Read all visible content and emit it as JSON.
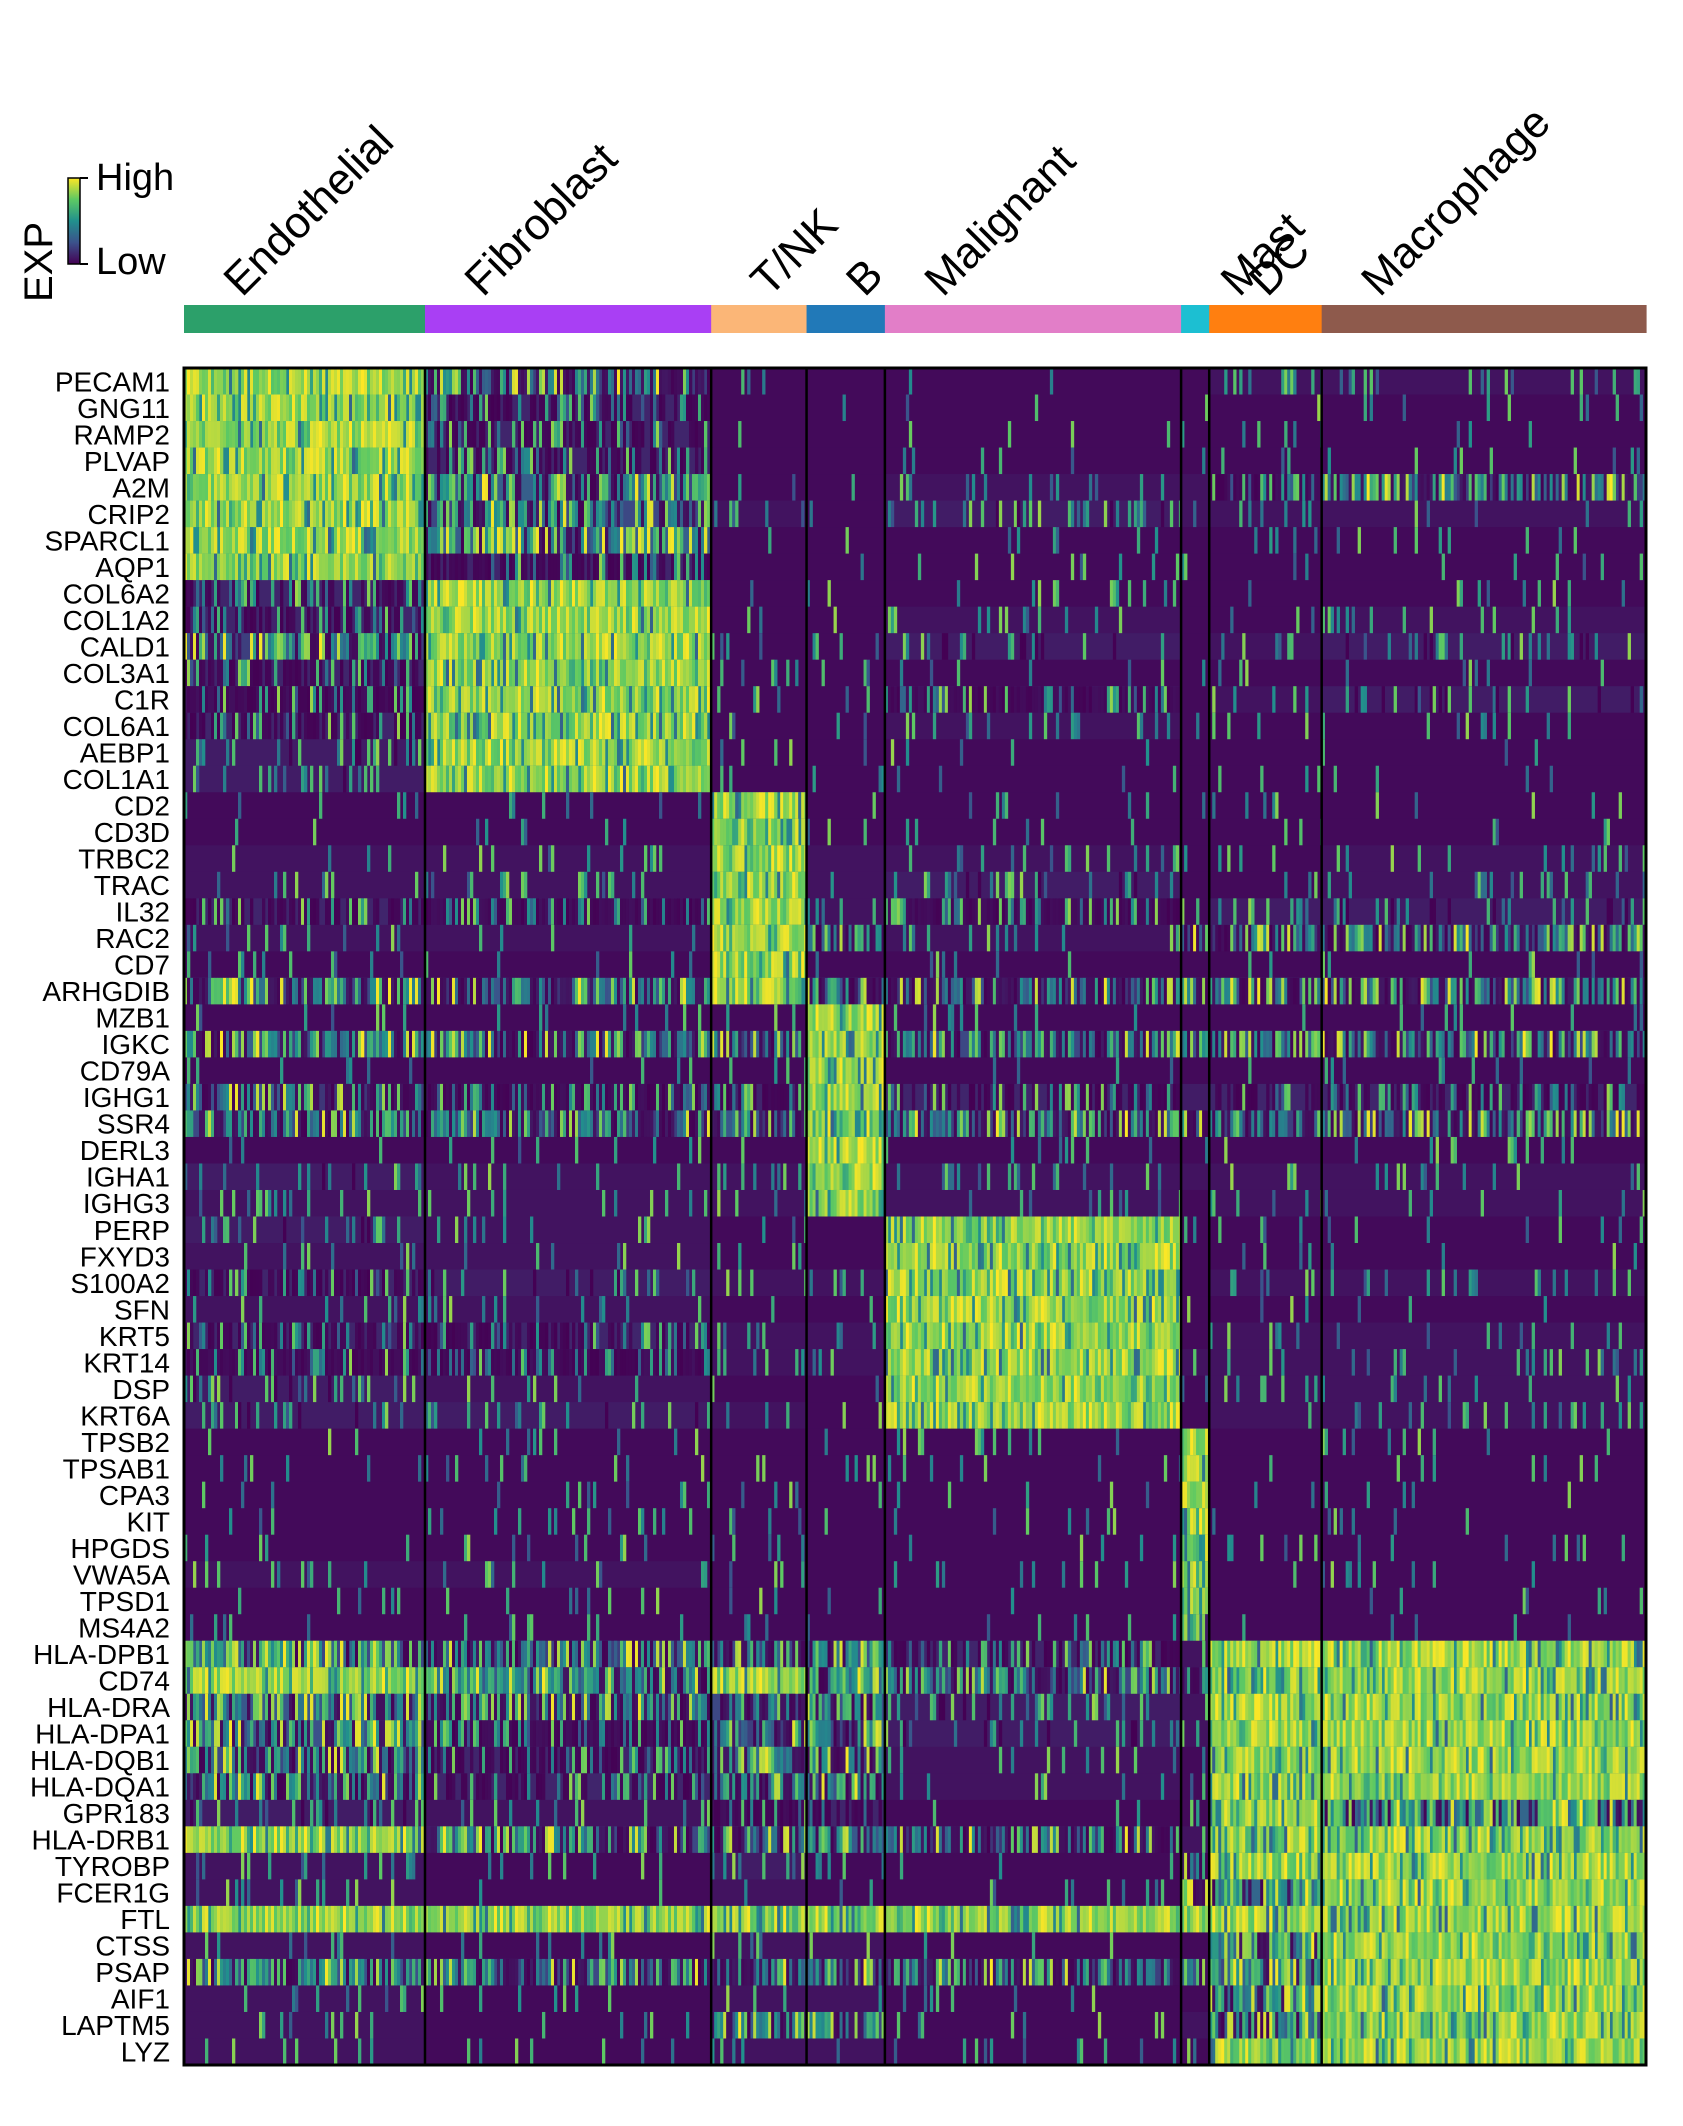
{
  "chart_data": {
    "type": "heatmap",
    "legend": {
      "title": "EXP",
      "high_label": "High",
      "low_label": "Low",
      "colormap": "viridis",
      "colors": [
        "#440154",
        "#3b528b",
        "#21908d",
        "#5dc963",
        "#fde725"
      ]
    },
    "clusters": [
      {
        "name": "Endothelial",
        "color": "#2ca06a",
        "cells": 240
      },
      {
        "name": "Fibroblast",
        "color": "#a93ff4",
        "cells": 285
      },
      {
        "name": "T/NK",
        "color": "#fbb677",
        "cells": 95
      },
      {
        "name": "B",
        "color": "#2179b8",
        "cells": 78
      },
      {
        "name": "Malignant",
        "color": "#e27ec8",
        "cells": 295
      },
      {
        "name": "Mast",
        "color": "#1cbfd2",
        "cells": 28
      },
      {
        "name": "DC",
        "color": "#ff7f10",
        "cells": 112
      },
      {
        "name": "Macrophage",
        "color": "#8e5a4c",
        "cells": 323
      }
    ],
    "genes": [
      {
        "name": "PECAM1",
        "marker_of": "Endothelial"
      },
      {
        "name": "GNG11",
        "marker_of": "Endothelial"
      },
      {
        "name": "RAMP2",
        "marker_of": "Endothelial"
      },
      {
        "name": "PLVAP",
        "marker_of": "Endothelial"
      },
      {
        "name": "A2M",
        "marker_of": "Endothelial"
      },
      {
        "name": "CRIP2",
        "marker_of": "Endothelial"
      },
      {
        "name": "SPARCL1",
        "marker_of": "Endothelial"
      },
      {
        "name": "AQP1",
        "marker_of": "Endothelial"
      },
      {
        "name": "COL6A2",
        "marker_of": "Fibroblast"
      },
      {
        "name": "COL1A2",
        "marker_of": "Fibroblast"
      },
      {
        "name": "CALD1",
        "marker_of": "Fibroblast"
      },
      {
        "name": "COL3A1",
        "marker_of": "Fibroblast"
      },
      {
        "name": "C1R",
        "marker_of": "Fibroblast"
      },
      {
        "name": "COL6A1",
        "marker_of": "Fibroblast"
      },
      {
        "name": "AEBP1",
        "marker_of": "Fibroblast"
      },
      {
        "name": "COL1A1",
        "marker_of": "Fibroblast"
      },
      {
        "name": "CD2",
        "marker_of": "T/NK"
      },
      {
        "name": "CD3D",
        "marker_of": "T/NK"
      },
      {
        "name": "TRBC2",
        "marker_of": "T/NK"
      },
      {
        "name": "TRAC",
        "marker_of": "T/NK"
      },
      {
        "name": "IL32",
        "marker_of": "T/NK"
      },
      {
        "name": "RAC2",
        "marker_of": "T/NK"
      },
      {
        "name": "CD7",
        "marker_of": "T/NK"
      },
      {
        "name": "ARHGDIB",
        "marker_of": "T/NK"
      },
      {
        "name": "MZB1",
        "marker_of": "B"
      },
      {
        "name": "IGKC",
        "marker_of": "B"
      },
      {
        "name": "CD79A",
        "marker_of": "B"
      },
      {
        "name": "IGHG1",
        "marker_of": "B"
      },
      {
        "name": "SSR4",
        "marker_of": "B"
      },
      {
        "name": "DERL3",
        "marker_of": "B"
      },
      {
        "name": "IGHA1",
        "marker_of": "B"
      },
      {
        "name": "IGHG3",
        "marker_of": "B"
      },
      {
        "name": "PERP",
        "marker_of": "Malignant"
      },
      {
        "name": "FXYD3",
        "marker_of": "Malignant"
      },
      {
        "name": "S100A2",
        "marker_of": "Malignant"
      },
      {
        "name": "SFN",
        "marker_of": "Malignant"
      },
      {
        "name": "KRT5",
        "marker_of": "Malignant"
      },
      {
        "name": "KRT14",
        "marker_of": "Malignant"
      },
      {
        "name": "DSP",
        "marker_of": "Malignant"
      },
      {
        "name": "KRT6A",
        "marker_of": "Malignant"
      },
      {
        "name": "TPSB2",
        "marker_of": "Mast"
      },
      {
        "name": "TPSAB1",
        "marker_of": "Mast"
      },
      {
        "name": "CPA3",
        "marker_of": "Mast"
      },
      {
        "name": "KIT",
        "marker_of": "Mast"
      },
      {
        "name": "HPGDS",
        "marker_of": "Mast"
      },
      {
        "name": "VWA5A",
        "marker_of": "Mast"
      },
      {
        "name": "TPSD1",
        "marker_of": "Mast"
      },
      {
        "name": "MS4A2",
        "marker_of": "Mast"
      },
      {
        "name": "HLA-DPB1",
        "marker_of": "DC"
      },
      {
        "name": "CD74",
        "marker_of": "DC"
      },
      {
        "name": "HLA-DRA",
        "marker_of": "DC"
      },
      {
        "name": "HLA-DPA1",
        "marker_of": "DC"
      },
      {
        "name": "HLA-DQB1",
        "marker_of": "DC"
      },
      {
        "name": "HLA-DQA1",
        "marker_of": "DC"
      },
      {
        "name": "GPR183",
        "marker_of": "DC"
      },
      {
        "name": "HLA-DRB1",
        "marker_of": "DC"
      },
      {
        "name": "TYROBP",
        "marker_of": "Macrophage"
      },
      {
        "name": "FCER1G",
        "marker_of": "Macrophage"
      },
      {
        "name": "FTL",
        "marker_of": "Macrophage"
      },
      {
        "name": "CTSS",
        "marker_of": "Macrophage"
      },
      {
        "name": "PSAP",
        "marker_of": "Macrophage"
      },
      {
        "name": "AIF1",
        "marker_of": "Macrophage"
      },
      {
        "name": "LAPTM5",
        "marker_of": "Macrophage"
      },
      {
        "name": "LYZ",
        "marker_of": "Macrophage"
      }
    ],
    "expression_profile_scale": "0 = Low, 1 = High",
    "mean_expression": {
      "columns": [
        "Endothelial",
        "Fibroblast",
        "T/NK",
        "B",
        "Malignant",
        "Mast",
        "DC",
        "Macrophage"
      ],
      "rows": {
        "PECAM1": [
          0.85,
          0.35,
          0.05,
          0.05,
          0.05,
          0.05,
          0.1,
          0.1
        ],
        "GNG11": [
          0.85,
          0.2,
          0.05,
          0.05,
          0.05,
          0.05,
          0.05,
          0.05
        ],
        "RAMP2": [
          0.85,
          0.2,
          0.05,
          0.05,
          0.05,
          0.05,
          0.05,
          0.05
        ],
        "PLVAP": [
          0.85,
          0.2,
          0.05,
          0.05,
          0.05,
          0.05,
          0.05,
          0.05
        ],
        "A2M": [
          0.9,
          0.55,
          0.05,
          0.05,
          0.1,
          0.1,
          0.25,
          0.35
        ],
        "CRIP2": [
          0.85,
          0.4,
          0.1,
          0.05,
          0.15,
          0.1,
          0.1,
          0.1
        ],
        "SPARCL1": [
          0.9,
          0.55,
          0.05,
          0.05,
          0.05,
          0.05,
          0.05,
          0.05
        ],
        "AQP1": [
          0.85,
          0.2,
          0.05,
          0.05,
          0.05,
          0.05,
          0.05,
          0.05
        ],
        "COL6A2": [
          0.2,
          0.9,
          0.05,
          0.05,
          0.05,
          0.05,
          0.05,
          0.05
        ],
        "COL1A2": [
          0.2,
          0.9,
          0.05,
          0.05,
          0.1,
          0.05,
          0.05,
          0.1
        ],
        "CALD1": [
          0.35,
          0.9,
          0.05,
          0.05,
          0.15,
          0.05,
          0.1,
          0.15
        ],
        "COL3A1": [
          0.2,
          0.9,
          0.05,
          0.05,
          0.05,
          0.05,
          0.05,
          0.05
        ],
        "C1R": [
          0.25,
          0.85,
          0.05,
          0.05,
          0.25,
          0.05,
          0.1,
          0.15
        ],
        "COL6A1": [
          0.2,
          0.85,
          0.05,
          0.05,
          0.1,
          0.05,
          0.05,
          0.05
        ],
        "AEBP1": [
          0.15,
          0.85,
          0.05,
          0.05,
          0.05,
          0.05,
          0.05,
          0.05
        ],
        "COL1A1": [
          0.15,
          0.9,
          0.05,
          0.05,
          0.05,
          0.05,
          0.05,
          0.05
        ],
        "CD2": [
          0.05,
          0.05,
          0.8,
          0.05,
          0.05,
          0.05,
          0.05,
          0.05
        ],
        "CD3D": [
          0.05,
          0.05,
          0.8,
          0.05,
          0.05,
          0.05,
          0.05,
          0.05
        ],
        "TRBC2": [
          0.1,
          0.1,
          0.8,
          0.1,
          0.1,
          0.05,
          0.05,
          0.1
        ],
        "TRAC": [
          0.1,
          0.1,
          0.8,
          0.1,
          0.15,
          0.05,
          0.05,
          0.1
        ],
        "IL32": [
          0.2,
          0.25,
          0.8,
          0.1,
          0.25,
          0.05,
          0.15,
          0.15
        ],
        "RAC2": [
          0.1,
          0.1,
          0.75,
          0.35,
          0.1,
          0.4,
          0.3,
          0.35
        ],
        "CD7": [
          0.05,
          0.05,
          0.75,
          0.05,
          0.05,
          0.05,
          0.05,
          0.05
        ],
        "ARHGDIB": [
          0.4,
          0.3,
          0.85,
          0.45,
          0.3,
          0.5,
          0.45,
          0.45
        ],
        "MZB1": [
          0.05,
          0.05,
          0.05,
          0.8,
          0.05,
          0.05,
          0.05,
          0.05
        ],
        "IGKC": [
          0.4,
          0.35,
          0.3,
          0.85,
          0.4,
          0.3,
          0.35,
          0.4
        ],
        "CD79A": [
          0.05,
          0.05,
          0.05,
          0.75,
          0.05,
          0.05,
          0.05,
          0.05
        ],
        "IGHG1": [
          0.3,
          0.25,
          0.2,
          0.8,
          0.2,
          0.15,
          0.2,
          0.2
        ],
        "SSR4": [
          0.4,
          0.35,
          0.3,
          0.85,
          0.35,
          0.3,
          0.35,
          0.35
        ],
        "DERL3": [
          0.05,
          0.05,
          0.05,
          0.7,
          0.05,
          0.05,
          0.05,
          0.05
        ],
        "IGHA1": [
          0.15,
          0.1,
          0.1,
          0.75,
          0.1,
          0.1,
          0.1,
          0.1
        ],
        "IGHG3": [
          0.1,
          0.1,
          0.1,
          0.7,
          0.1,
          0.05,
          0.1,
          0.1
        ],
        "PERP": [
          0.15,
          0.1,
          0.05,
          0.05,
          0.9,
          0.05,
          0.05,
          0.05
        ],
        "FXYD3": [
          0.1,
          0.1,
          0.05,
          0.05,
          0.9,
          0.05,
          0.05,
          0.05
        ],
        "S100A2": [
          0.2,
          0.15,
          0.1,
          0.1,
          0.85,
          0.05,
          0.1,
          0.1
        ],
        "SFN": [
          0.1,
          0.1,
          0.05,
          0.05,
          0.85,
          0.05,
          0.05,
          0.05
        ],
        "KRT5": [
          0.2,
          0.2,
          0.1,
          0.1,
          0.85,
          0.05,
          0.1,
          0.1
        ],
        "KRT14": [
          0.25,
          0.25,
          0.1,
          0.1,
          0.85,
          0.1,
          0.1,
          0.1
        ],
        "DSP": [
          0.15,
          0.1,
          0.05,
          0.05,
          0.75,
          0.05,
          0.1,
          0.1
        ],
        "KRT6A": [
          0.15,
          0.15,
          0.1,
          0.05,
          0.85,
          0.05,
          0.1,
          0.1
        ],
        "TPSB2": [
          0.05,
          0.05,
          0.05,
          0.05,
          0.05,
          0.95,
          0.05,
          0.05
        ],
        "TPSAB1": [
          0.05,
          0.05,
          0.05,
          0.05,
          0.05,
          0.95,
          0.05,
          0.05
        ],
        "CPA3": [
          0.05,
          0.05,
          0.05,
          0.05,
          0.05,
          0.95,
          0.05,
          0.05
        ],
        "KIT": [
          0.05,
          0.05,
          0.05,
          0.05,
          0.05,
          0.75,
          0.05,
          0.05
        ],
        "HPGDS": [
          0.05,
          0.05,
          0.05,
          0.05,
          0.05,
          0.7,
          0.05,
          0.05
        ],
        "VWA5A": [
          0.1,
          0.1,
          0.05,
          0.05,
          0.05,
          0.7,
          0.05,
          0.05
        ],
        "TPSD1": [
          0.05,
          0.05,
          0.05,
          0.05,
          0.05,
          0.7,
          0.05,
          0.05
        ],
        "MS4A2": [
          0.05,
          0.05,
          0.05,
          0.05,
          0.05,
          0.65,
          0.05,
          0.05
        ],
        "HLA-DPB1": [
          0.6,
          0.35,
          0.4,
          0.45,
          0.2,
          0.1,
          0.95,
          0.9
        ],
        "CD74": [
          0.8,
          0.5,
          0.7,
          0.6,
          0.4,
          0.2,
          0.95,
          0.95
        ],
        "HLA-DRA": [
          0.5,
          0.3,
          0.4,
          0.45,
          0.15,
          0.1,
          0.95,
          0.9
        ],
        "HLA-DPA1": [
          0.45,
          0.25,
          0.35,
          0.4,
          0.15,
          0.1,
          0.9,
          0.85
        ],
        "HLA-DQB1": [
          0.4,
          0.2,
          0.3,
          0.35,
          0.1,
          0.05,
          0.85,
          0.8
        ],
        "HLA-DQA1": [
          0.35,
          0.2,
          0.3,
          0.3,
          0.1,
          0.05,
          0.85,
          0.75
        ],
        "GPR183": [
          0.15,
          0.1,
          0.25,
          0.2,
          0.05,
          0.05,
          0.8,
          0.6
        ],
        "HLA-DRB1": [
          0.75,
          0.4,
          0.55,
          0.5,
          0.3,
          0.1,
          0.95,
          0.95
        ],
        "TYROBP": [
          0.1,
          0.05,
          0.15,
          0.05,
          0.05,
          0.3,
          0.75,
          0.9
        ],
        "FCER1G": [
          0.1,
          0.05,
          0.1,
          0.05,
          0.05,
          0.4,
          0.6,
          0.85
        ],
        "FTL": [
          0.95,
          0.9,
          0.85,
          0.85,
          0.85,
          0.75,
          0.9,
          0.98
        ],
        "CTSS": [
          0.1,
          0.05,
          0.1,
          0.1,
          0.05,
          0.05,
          0.6,
          0.85
        ],
        "PSAP": [
          0.45,
          0.4,
          0.35,
          0.35,
          0.35,
          0.3,
          0.6,
          0.85
        ],
        "AIF1": [
          0.1,
          0.05,
          0.1,
          0.1,
          0.05,
          0.05,
          0.6,
          0.8
        ],
        "LAPTM5": [
          0.1,
          0.05,
          0.5,
          0.4,
          0.05,
          0.1,
          0.55,
          0.75
        ],
        "LYZ": [
          0.1,
          0.05,
          0.1,
          0.1,
          0.05,
          0.05,
          0.7,
          0.9
        ]
      }
    }
  }
}
